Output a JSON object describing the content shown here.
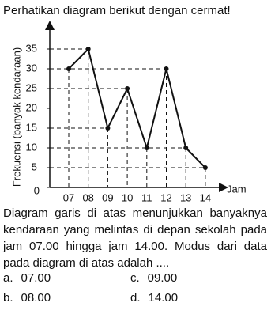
{
  "intro": "Perhatikan diagram berikut dengan cermat!",
  "chart_data": {
    "type": "line",
    "x_label": "Jam",
    "y_label": "Frekuensi (banyak kendaraan)",
    "categories": [
      "07",
      "08",
      "09",
      "10",
      "11",
      "12",
      "13",
      "14"
    ],
    "values": [
      30,
      35,
      15,
      25,
      10,
      30,
      10,
      5
    ],
    "color": "#111111",
    "ylim": [
      0,
      40
    ],
    "yticks": [
      0,
      5,
      10,
      15,
      20,
      25,
      30,
      35
    ],
    "grid": "dashed"
  },
  "question": "Diagram garis di atas menunjukkan banyaknya kendaraan yang melintas di depan sekolah pada jam 07.00 hingga jam 14.00. Modus dari data pada diagram di atas adalah ....",
  "options": [
    {
      "letter": "a.",
      "text": "07.00"
    },
    {
      "letter": "b.",
      "text": "08.00"
    },
    {
      "letter": "c.",
      "text": "09.00"
    },
    {
      "letter": "d.",
      "text": "14.00"
    }
  ]
}
